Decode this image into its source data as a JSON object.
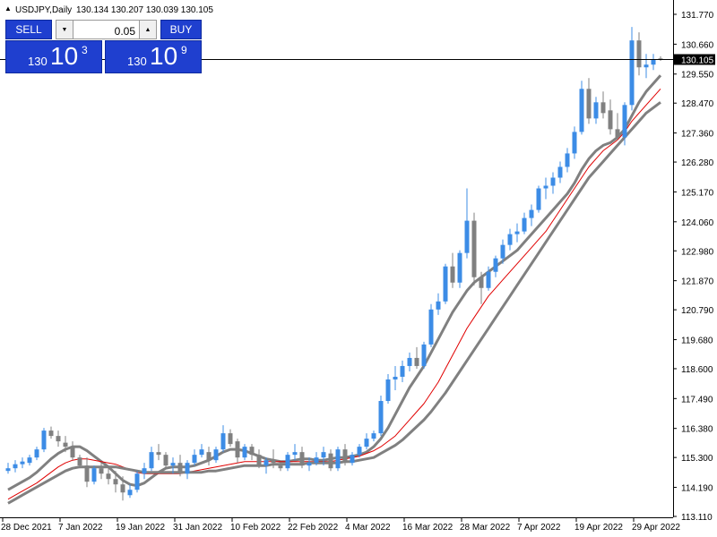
{
  "header": {
    "triangle": "▲",
    "symbol": "USDJPY,Daily",
    "ohlc": "130.134 130.207 130.039 130.105"
  },
  "trade_panel": {
    "sell_label": "SELL",
    "buy_label": "BUY",
    "lot": "0.05",
    "down_glyph": "▼",
    "up_glyph": "▲",
    "bid": {
      "prefix": "130",
      "big": "10",
      "sup": "3"
    },
    "ask": {
      "prefix": "130",
      "big": "10",
      "sup": "9"
    }
  },
  "colors": {
    "bull": "#3c8ce6",
    "bear": "#808080",
    "ma_gray": "#808080",
    "ma_red": "#e00000",
    "panel_blue": "#1f3fcf"
  },
  "chart_data": {
    "type": "candlestick",
    "symbol": "USDJPY",
    "timeframe": "Daily",
    "last_price": "130.105",
    "ylim": [
      113.0,
      132.2
    ],
    "y_ticks": [
      "131.770",
      "130.660",
      "129.550",
      "128.470",
      "127.360",
      "126.280",
      "125.170",
      "124.060",
      "122.980",
      "121.870",
      "120.790",
      "119.680",
      "118.600",
      "117.490",
      "116.380",
      "115.300",
      "114.190",
      "113.110"
    ],
    "x_ticks": [
      {
        "label": "28 Dec 2021",
        "index": 0
      },
      {
        "label": "7 Jan 2022",
        "index": 8
      },
      {
        "label": "19 Jan 2022",
        "index": 16
      },
      {
        "label": "31 Jan 2022",
        "index": 24
      },
      {
        "label": "10 Feb 2022",
        "index": 32
      },
      {
        "label": "22 Feb 2022",
        "index": 40
      },
      {
        "label": "4 Mar 2022",
        "index": 48
      },
      {
        "label": "16 Mar 2022",
        "index": 56
      },
      {
        "label": "28 Mar 2022",
        "index": 64
      },
      {
        "label": "7 Apr 2022",
        "index": 72
      },
      {
        "label": "19 Apr 2022",
        "index": 80
      },
      {
        "label": "29 Apr 2022",
        "index": 88
      }
    ],
    "candles": [
      [
        114.8,
        115.1,
        114.7,
        114.9
      ],
      [
        114.9,
        115.2,
        114.75,
        115.05
      ],
      [
        115.05,
        115.3,
        114.9,
        115.15
      ],
      [
        115.1,
        115.4,
        115.0,
        115.3
      ],
      [
        115.3,
        115.7,
        115.2,
        115.6
      ],
      [
        115.6,
        116.4,
        115.5,
        116.3
      ],
      [
        116.3,
        116.45,
        116.0,
        116.1
      ],
      [
        116.1,
        116.3,
        115.7,
        115.9
      ],
      [
        115.85,
        116.1,
        115.5,
        115.7
      ],
      [
        115.7,
        115.9,
        115.2,
        115.3
      ],
      [
        115.3,
        115.4,
        114.9,
        115.0
      ],
      [
        115.0,
        115.3,
        114.2,
        114.4
      ],
      [
        114.4,
        115.0,
        114.3,
        114.9
      ],
      [
        114.9,
        115.1,
        114.5,
        114.7
      ],
      [
        114.7,
        114.9,
        114.3,
        114.5
      ],
      [
        114.5,
        114.8,
        114.0,
        114.3
      ],
      [
        114.3,
        114.6,
        113.7,
        114.0
      ],
      [
        113.9,
        114.3,
        113.8,
        114.1
      ],
      [
        114.1,
        114.8,
        114.0,
        114.7
      ],
      [
        114.7,
        115.1,
        114.5,
        114.9
      ],
      [
        114.9,
        115.7,
        114.8,
        115.5
      ],
      [
        115.5,
        115.8,
        115.2,
        115.4
      ],
      [
        115.4,
        115.5,
        114.9,
        115.0
      ],
      [
        115.0,
        115.3,
        114.7,
        115.1
      ],
      [
        115.1,
        115.4,
        114.6,
        114.7
      ],
      [
        114.7,
        115.2,
        114.5,
        115.1
      ],
      [
        115.1,
        115.6,
        115.0,
        115.4
      ],
      [
        115.4,
        115.8,
        115.3,
        115.6
      ],
      [
        115.5,
        115.7,
        115.0,
        115.2
      ],
      [
        115.2,
        115.7,
        115.1,
        115.6
      ],
      [
        115.6,
        116.5,
        115.5,
        116.2
      ],
      [
        116.2,
        116.35,
        115.7,
        115.8
      ],
      [
        115.9,
        116.0,
        115.1,
        115.3
      ],
      [
        115.3,
        115.8,
        115.2,
        115.7
      ],
      [
        115.7,
        115.8,
        115.2,
        115.4
      ],
      [
        115.4,
        115.6,
        114.9,
        115.0
      ],
      [
        115.0,
        115.3,
        114.7,
        115.2
      ],
      [
        115.2,
        115.6,
        114.9,
        115.1
      ],
      [
        115.0,
        115.1,
        114.8,
        114.9
      ],
      [
        114.9,
        115.5,
        114.8,
        115.4
      ],
      [
        115.4,
        115.8,
        115.2,
        115.5
      ],
      [
        115.5,
        115.7,
        114.9,
        115.0
      ],
      [
        115.0,
        115.3,
        114.8,
        115.1
      ],
      [
        115.1,
        115.5,
        115.0,
        115.3
      ],
      [
        115.3,
        115.7,
        115.0,
        115.5
      ],
      [
        115.45,
        115.6,
        114.8,
        114.9
      ],
      [
        114.9,
        115.7,
        114.8,
        115.6
      ],
      [
        115.6,
        115.8,
        115.0,
        115.1
      ],
      [
        115.1,
        115.5,
        115.0,
        115.4
      ],
      [
        115.4,
        115.8,
        115.3,
        115.7
      ],
      [
        115.7,
        116.2,
        115.6,
        116.0
      ],
      [
        116.0,
        116.3,
        115.9,
        116.2
      ],
      [
        116.2,
        117.6,
        116.1,
        117.4
      ],
      [
        117.4,
        118.4,
        117.3,
        118.2
      ],
      [
        118.2,
        118.7,
        117.8,
        118.3
      ],
      [
        118.3,
        118.9,
        118.1,
        118.7
      ],
      [
        118.7,
        119.2,
        118.5,
        119.0
      ],
      [
        119.0,
        119.4,
        118.6,
        118.7
      ],
      [
        118.7,
        119.6,
        118.6,
        119.5
      ],
      [
        119.5,
        121.0,
        119.4,
        120.8
      ],
      [
        120.8,
        121.4,
        120.6,
        121.1
      ],
      [
        121.1,
        122.5,
        121.0,
        122.4
      ],
      [
        122.4,
        122.9,
        121.6,
        121.8
      ],
      [
        121.8,
        123.0,
        121.6,
        122.9
      ],
      [
        122.9,
        125.3,
        122.7,
        124.1
      ],
      [
        124.1,
        124.4,
        121.7,
        122.0
      ],
      [
        122.0,
        122.2,
        121.0,
        121.6
      ],
      [
        121.6,
        122.4,
        121.5,
        122.2
      ],
      [
        122.2,
        122.8,
        122.0,
        122.7
      ],
      [
        122.7,
        123.4,
        122.5,
        123.2
      ],
      [
        123.2,
        123.8,
        123.0,
        123.6
      ],
      [
        123.6,
        124.0,
        123.3,
        123.7
      ],
      [
        123.7,
        124.4,
        123.6,
        124.2
      ],
      [
        124.2,
        124.7,
        123.9,
        124.5
      ],
      [
        124.5,
        125.4,
        124.4,
        125.3
      ],
      [
        125.3,
        125.7,
        124.9,
        125.4
      ],
      [
        125.4,
        125.9,
        125.1,
        125.7
      ],
      [
        125.7,
        126.3,
        125.5,
        126.1
      ],
      [
        126.1,
        126.8,
        125.9,
        126.6
      ],
      [
        126.6,
        127.6,
        126.4,
        127.4
      ],
      [
        127.4,
        129.3,
        127.3,
        129.0
      ],
      [
        129.0,
        129.4,
        127.7,
        127.9
      ],
      [
        127.9,
        128.7,
        127.7,
        128.5
      ],
      [
        128.5,
        128.9,
        127.9,
        128.1
      ],
      [
        128.2,
        128.6,
        127.3,
        127.5
      ],
      [
        127.5,
        128.1,
        127.1,
        127.2
      ],
      [
        127.2,
        128.5,
        126.9,
        128.4
      ],
      [
        128.4,
        131.3,
        128.2,
        130.8
      ],
      [
        130.8,
        131.1,
        129.5,
        129.8
      ],
      [
        129.8,
        130.3,
        129.4,
        129.9
      ],
      [
        129.9,
        130.3,
        129.7,
        130.1
      ],
      [
        130.13,
        130.21,
        130.04,
        130.11
      ]
    ],
    "moving_averages": [
      {
        "color": "gray",
        "width": "thick",
        "values": [
          114.1,
          114.25,
          114.4,
          114.55,
          114.75,
          115.0,
          115.25,
          115.45,
          115.6,
          115.7,
          115.7,
          115.55,
          115.35,
          115.15,
          114.95,
          114.7,
          114.45,
          114.3,
          114.25,
          114.35,
          114.55,
          114.75,
          114.9,
          114.95,
          114.95,
          114.95,
          115.0,
          115.1,
          115.2,
          115.35,
          115.5,
          115.6,
          115.6,
          115.55,
          115.45,
          115.35,
          115.25,
          115.2,
          115.15,
          115.15,
          115.2,
          115.25,
          115.25,
          115.2,
          115.2,
          115.25,
          115.3,
          115.3,
          115.35,
          115.4,
          115.5,
          115.7,
          116.0,
          116.4,
          116.9,
          117.4,
          117.9,
          118.3,
          118.7,
          119.2,
          119.7,
          120.2,
          120.7,
          121.1,
          121.5,
          121.8,
          122.0,
          122.2,
          122.4,
          122.6,
          122.8,
          123.0,
          123.3,
          123.6,
          123.9,
          124.2,
          124.5,
          124.8,
          125.1,
          125.5,
          126.0,
          126.4,
          126.7,
          126.9,
          127.0,
          127.2,
          127.5,
          128.0,
          128.5,
          128.9,
          129.2,
          129.5
        ]
      },
      {
        "color": "red",
        "width": "thin",
        "values": [
          113.75,
          113.9,
          114.05,
          114.2,
          114.35,
          114.55,
          114.75,
          114.95,
          115.1,
          115.2,
          115.25,
          115.25,
          115.2,
          115.15,
          115.1,
          115.05,
          114.95,
          114.85,
          114.75,
          114.7,
          114.7,
          114.7,
          114.7,
          114.7,
          114.7,
          114.75,
          114.8,
          114.85,
          114.9,
          114.95,
          115.0,
          115.05,
          115.1,
          115.15,
          115.15,
          115.15,
          115.15,
          115.15,
          115.15,
          115.15,
          115.15,
          115.15,
          115.15,
          115.15,
          115.15,
          115.15,
          115.2,
          115.25,
          115.3,
          115.35,
          115.45,
          115.55,
          115.7,
          115.9,
          116.1,
          116.4,
          116.7,
          117.0,
          117.3,
          117.7,
          118.1,
          118.6,
          119.1,
          119.6,
          120.1,
          120.5,
          120.9,
          121.3,
          121.6,
          121.9,
          122.2,
          122.5,
          122.8,
          123.1,
          123.4,
          123.7,
          124.1,
          124.5,
          124.9,
          125.3,
          125.7,
          126.1,
          126.4,
          126.7,
          126.9,
          127.1,
          127.4,
          127.8,
          128.1,
          128.4,
          128.7,
          129.0
        ]
      },
      {
        "color": "gray",
        "width": "thick",
        "values": [
          113.6,
          113.75,
          113.9,
          114.05,
          114.2,
          114.35,
          114.5,
          114.65,
          114.8,
          114.9,
          114.95,
          114.95,
          114.95,
          114.95,
          114.95,
          114.95,
          114.9,
          114.85,
          114.8,
          114.75,
          114.75,
          114.75,
          114.75,
          114.75,
          114.75,
          114.75,
          114.75,
          114.75,
          114.8,
          114.8,
          114.85,
          114.9,
          114.95,
          115.0,
          115.0,
          115.0,
          115.0,
          115.05,
          115.05,
          115.05,
          115.05,
          115.05,
          115.1,
          115.1,
          115.1,
          115.1,
          115.1,
          115.15,
          115.15,
          115.2,
          115.25,
          115.3,
          115.45,
          115.6,
          115.75,
          115.95,
          116.2,
          116.45,
          116.7,
          117.0,
          117.35,
          117.7,
          118.1,
          118.5,
          118.9,
          119.3,
          119.7,
          120.1,
          120.5,
          120.9,
          121.3,
          121.7,
          122.1,
          122.5,
          122.9,
          123.3,
          123.7,
          124.1,
          124.5,
          124.9,
          125.3,
          125.7,
          126.0,
          126.3,
          126.6,
          126.9,
          127.2,
          127.5,
          127.8,
          128.1,
          128.3,
          128.5
        ]
      }
    ]
  }
}
